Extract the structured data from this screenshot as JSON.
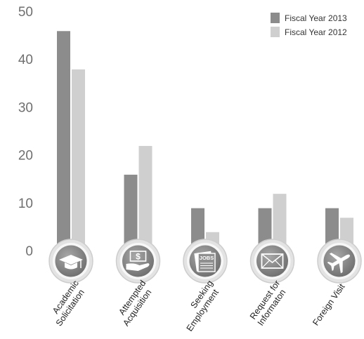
{
  "chart_data": {
    "type": "bar",
    "categories": [
      [
        "Academic",
        "Solicitation"
      ],
      [
        "Attempted",
        "Acquisition"
      ],
      [
        "Seeking",
        "Employment"
      ],
      [
        "Request for",
        "Informaton"
      ],
      [
        "Foreign Visit"
      ]
    ],
    "series": [
      {
        "name": "Fiscal Year 2013",
        "color": "#8c8c8c",
        "values": [
          46,
          16,
          9,
          9,
          9
        ]
      },
      {
        "name": "Fiscal Year 2012",
        "color": "#cfcfcf",
        "values": [
          38,
          22,
          4,
          12,
          7
        ]
      }
    ],
    "yticks": [
      0,
      10,
      20,
      30,
      40,
      50
    ],
    "ylim": [
      0,
      50
    ],
    "legend_position": "top-right",
    "grid": false,
    "category_icons": [
      "graduation-cap-icon",
      "dollar-hand-icon",
      "jobs-newspaper-icon",
      "envelope-icon",
      "airplane-icon"
    ]
  }
}
